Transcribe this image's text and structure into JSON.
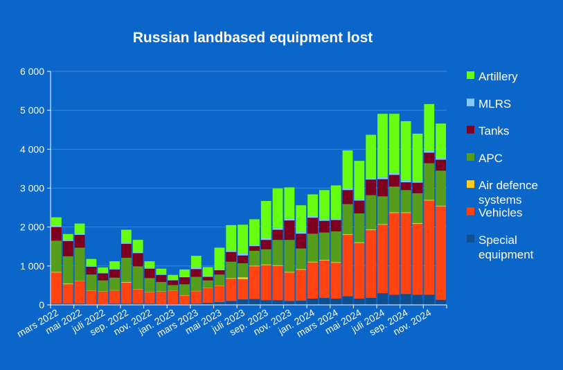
{
  "chart_data": {
    "type": "bar",
    "stacked": true,
    "title": "Russian landbased equipment lost",
    "ylim": [
      0,
      6000
    ],
    "yticks": [
      {
        "value": 0,
        "label": "0"
      },
      {
        "value": 1000,
        "label": "1 000"
      },
      {
        "value": 2000,
        "label": "2 000"
      },
      {
        "value": 3000,
        "label": "3 000"
      },
      {
        "value": 4000,
        "label": "4 000"
      },
      {
        "value": 5000,
        "label": "5 000"
      },
      {
        "value": 6000,
        "label": "6 000"
      }
    ],
    "xtick_labels": [
      {
        "index": 0,
        "label": "mars 2022"
      },
      {
        "index": 2,
        "label": "mai 2022"
      },
      {
        "index": 4,
        "label": "juli 2022"
      },
      {
        "index": 6,
        "label": "sep. 2022"
      },
      {
        "index": 8,
        "label": "nov. 2022"
      },
      {
        "index": 10,
        "label": "jan. 2023"
      },
      {
        "index": 12,
        "label": "mars 2023"
      },
      {
        "index": 14,
        "label": "mai 2023"
      },
      {
        "index": 16,
        "label": "juli 2023"
      },
      {
        "index": 18,
        "label": "sep. 2023"
      },
      {
        "index": 20,
        "label": "nov. 2023"
      },
      {
        "index": 22,
        "label": "jan. 2024"
      },
      {
        "index": 24,
        "label": "mars 2024"
      },
      {
        "index": 26,
        "label": "mai 2024"
      },
      {
        "index": 28,
        "label": "juli 2024"
      },
      {
        "index": 30,
        "label": "sep. 2024"
      },
      {
        "index": 32,
        "label": "nov. 2024"
      }
    ],
    "categories": [
      "2022-03",
      "2022-04",
      "2022-05",
      "2022-06",
      "2022-07",
      "2022-08",
      "2022-09",
      "2022-10",
      "2022-11",
      "2022-12",
      "2023-01",
      "2023-02",
      "2023-03",
      "2023-04",
      "2023-05",
      "2023-06",
      "2023-07",
      "2023-08",
      "2023-09",
      "2023-10",
      "2023-11",
      "2023-12",
      "2024-01",
      "2024-02",
      "2024-03",
      "2024-04",
      "2024-05",
      "2024-06",
      "2024-07",
      "2024-08",
      "2024-09",
      "2024-10",
      "2024-11",
      "2024-12"
    ],
    "series": [
      {
        "name": "Special equipment",
        "color": "#0f4f8f",
        "values": [
          30,
          30,
          30,
          20,
          20,
          30,
          30,
          30,
          30,
          20,
          20,
          20,
          30,
          50,
          70,
          100,
          140,
          150,
          120,
          120,
          100,
          110,
          160,
          180,
          160,
          220,
          160,
          180,
          300,
          260,
          280,
          260,
          260,
          130
        ]
      },
      {
        "name": "Vehicles",
        "color": "#ff4411",
        "values": [
          800,
          500,
          580,
          340,
          320,
          340,
          540,
          370,
          300,
          320,
          340,
          220,
          320,
          380,
          420,
          570,
          520,
          840,
          900,
          880,
          730,
          790,
          930,
          960,
          920,
          1580,
          1430,
          1740,
          1760,
          2100,
          2080,
          1820,
          2420,
          2400
        ]
      },
      {
        "name": "Air defence systems",
        "color": "#ffcc22",
        "values": [
          20,
          20,
          10,
          10,
          10,
          10,
          20,
          10,
          10,
          10,
          10,
          10,
          10,
          10,
          10,
          20,
          50,
          20,
          20,
          20,
          20,
          20,
          20,
          20,
          20,
          20,
          20,
          20,
          20,
          20,
          20,
          20,
          20,
          20
        ]
      },
      {
        "name": "APC",
        "color": "#579d1c",
        "values": [
          800,
          700,
          850,
          410,
          280,
          320,
          620,
          580,
          350,
          240,
          140,
          280,
          360,
          190,
          280,
          420,
          360,
          380,
          390,
          650,
          820,
          530,
          720,
          700,
          790,
          770,
          740,
          880,
          710,
          660,
          570,
          770,
          940,
          900
        ]
      },
      {
        "name": "Tanks",
        "color": "#7e0021",
        "values": [
          350,
          390,
          330,
          200,
          180,
          210,
          360,
          340,
          240,
          180,
          120,
          180,
          200,
          90,
          110,
          250,
          200,
          120,
          240,
          260,
          500,
          380,
          410,
          300,
          290,
          360,
          330,
          400,
          440,
          300,
          200,
          270,
          270,
          280
        ]
      },
      {
        "name": "MLRS",
        "color": "#83caff",
        "values": [
          50,
          30,
          40,
          20,
          20,
          20,
          30,
          40,
          20,
          20,
          20,
          20,
          40,
          20,
          20,
          30,
          50,
          40,
          40,
          50,
          50,
          50,
          40,
          40,
          40,
          40,
          30,
          30,
          50,
          50,
          50,
          40,
          60,
          40
        ]
      },
      {
        "name": "Artillery",
        "color": "#66ff11",
        "values": [
          200,
          150,
          250,
          180,
          130,
          190,
          330,
          300,
          170,
          140,
          120,
          180,
          300,
          230,
          560,
          660,
          740,
          650,
          960,
          1010,
          800,
          680,
          560,
          750,
          850,
          980,
          990,
          1120,
          1630,
          1520,
          1520,
          1220,
          1190,
          890
        ]
      }
    ],
    "legend": {
      "position": "right",
      "order": [
        6,
        5,
        4,
        3,
        2,
        1,
        0
      ],
      "labels": [
        [
          "Artillery"
        ],
        [
          "MLRS"
        ],
        [
          "Tanks"
        ],
        [
          "APC"
        ],
        [
          "Air defence",
          "systems"
        ],
        [
          "Vehicles"
        ],
        [
          "Special",
          "equipment"
        ]
      ]
    }
  }
}
